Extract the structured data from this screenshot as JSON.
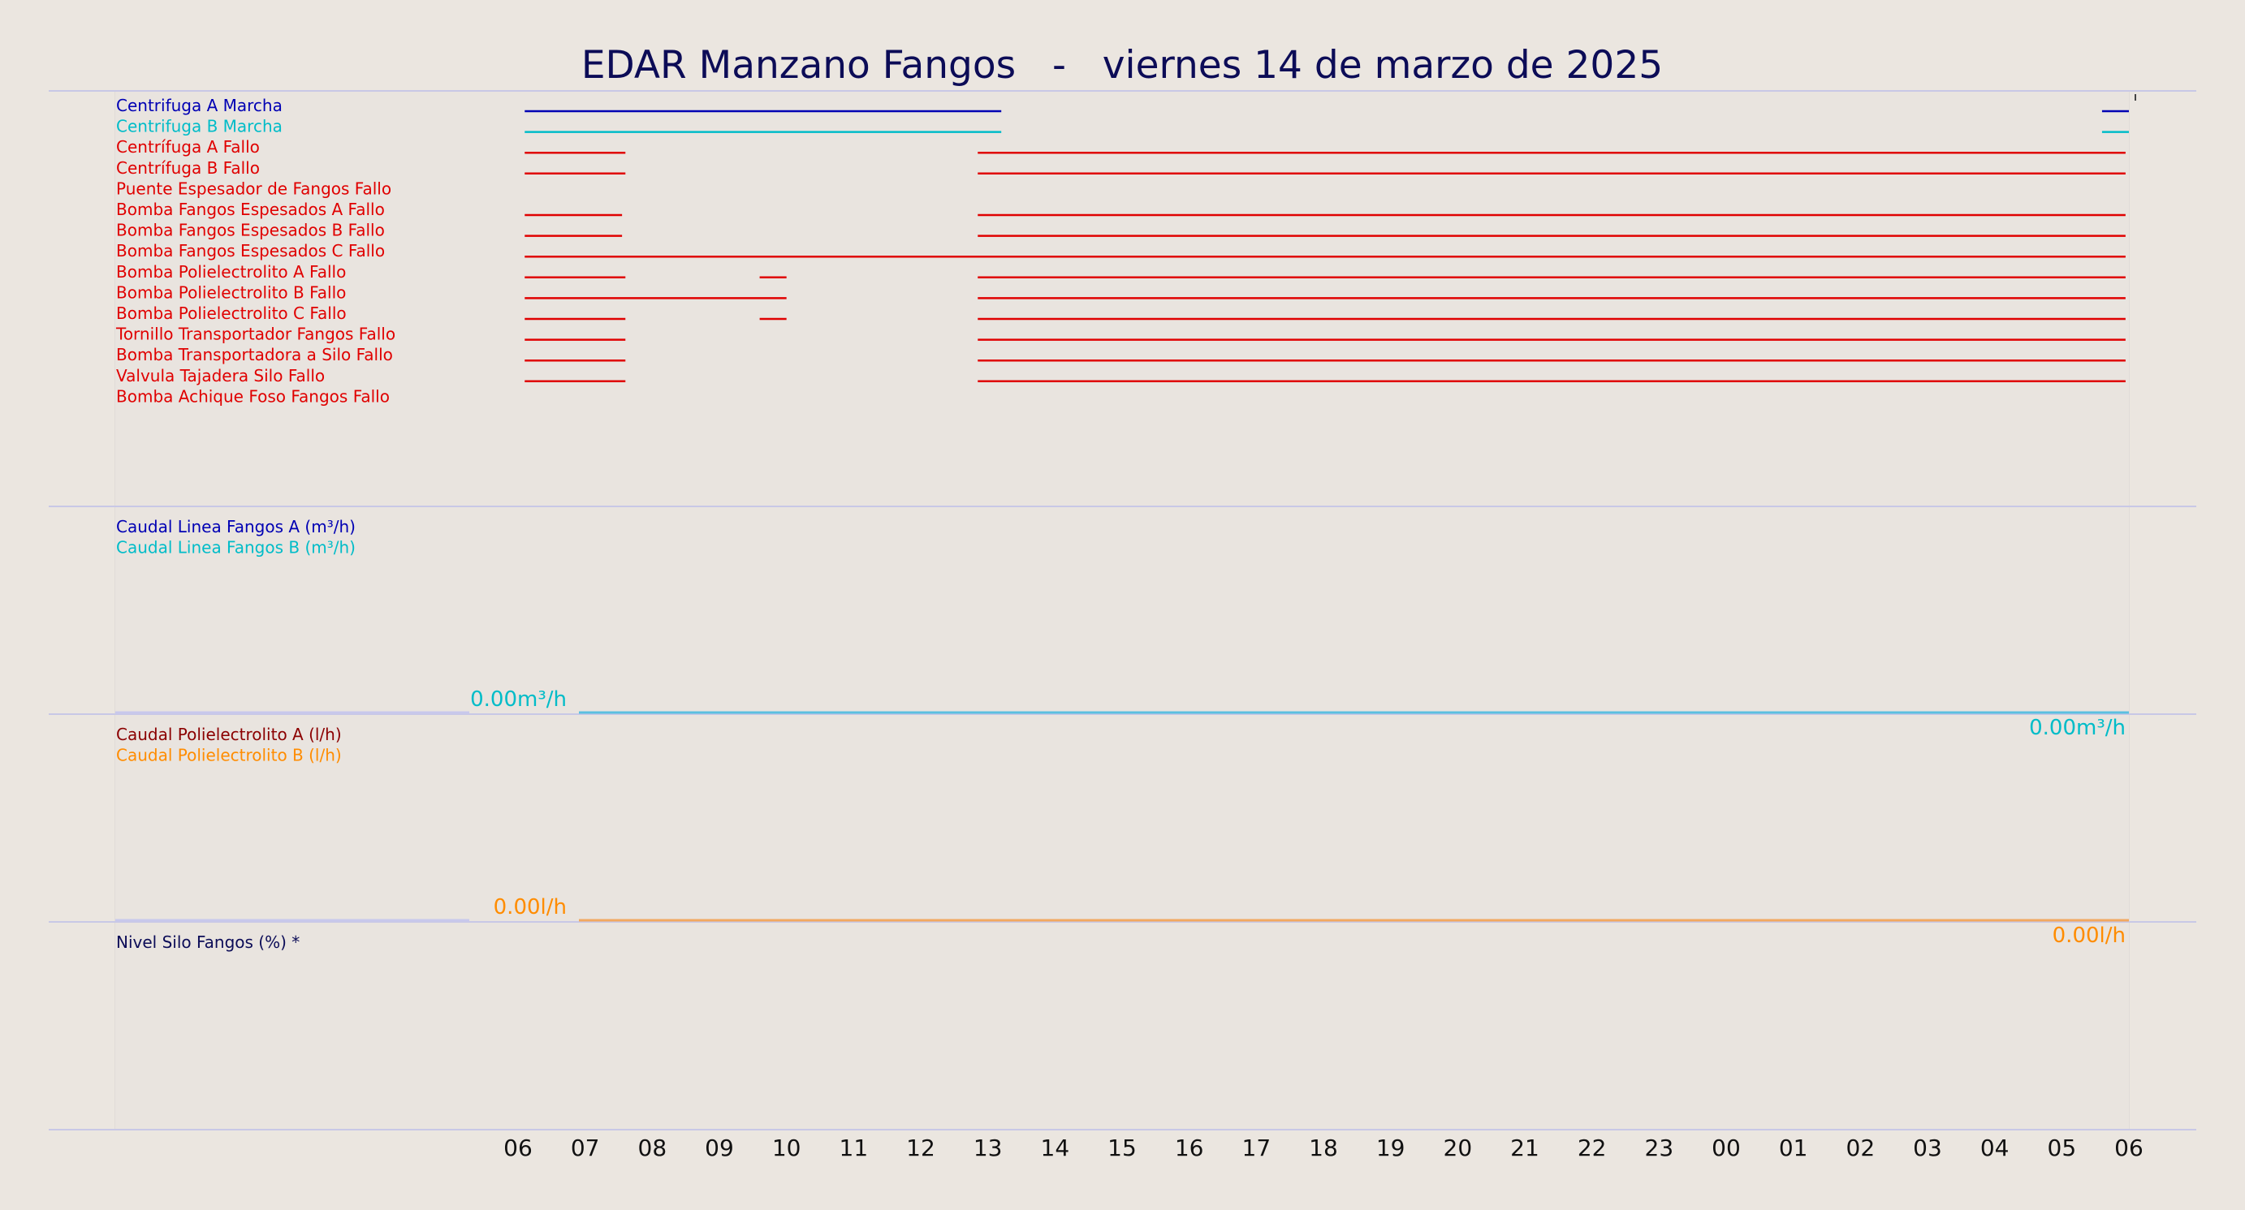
{
  "chart_data": {
    "type": "line",
    "title": "EDAR Manzano Fangos   -   viernes 14 de marzo de 2025",
    "x_range_hours": [
      6,
      30
    ],
    "x_ticks": [
      "06",
      "07",
      "08",
      "09",
      "10",
      "11",
      "12",
      "13",
      "14",
      "15",
      "16",
      "17",
      "18",
      "19",
      "20",
      "21",
      "22",
      "23",
      "00",
      "01",
      "02",
      "03",
      "04",
      "05",
      "06"
    ],
    "grid": true,
    "colors": {
      "background": "#ebe6e0",
      "title": "#0c0c57",
      "fault": "#e00000",
      "run_a": "#0000b4",
      "run_b": "#00bcc8",
      "flow_a": "#0000b4",
      "flow_b": "#00bcc8",
      "poly_a": "#8b0000",
      "poly_b": "#ff8c00",
      "silo": "#0c0c57"
    },
    "panels": [
      {
        "name": "estado",
        "signals": [
          {
            "label": "Centrifuga A Marcha",
            "color": "#0000b4",
            "on": [
              [
                6.1,
                13.2
              ],
              [
                29.6,
                30.0
              ]
            ]
          },
          {
            "label": "Centrifuga B Marcha",
            "color": "#00bcc8",
            "on": [
              [
                6.1,
                13.2
              ],
              [
                29.6,
                30.0
              ]
            ]
          },
          {
            "label": "Centrífuga A Fallo",
            "color": "#e00000",
            "on": [
              [
                6.1,
                7.6
              ],
              [
                12.85,
                29.95
              ]
            ]
          },
          {
            "label": "Centrífuga B Fallo",
            "color": "#e00000",
            "on": [
              [
                6.1,
                7.6
              ],
              [
                12.85,
                29.95
              ]
            ]
          },
          {
            "label": "Puente Espesador de Fangos Fallo",
            "color": "#e00000",
            "on": []
          },
          {
            "label": "Bomba Fangos Espesados A Fallo",
            "color": "#e00000",
            "on": [
              [
                6.1,
                7.55
              ],
              [
                12.85,
                29.95
              ]
            ]
          },
          {
            "label": "Bomba Fangos Espesados B Fallo",
            "color": "#e00000",
            "on": [
              [
                6.1,
                7.55
              ],
              [
                12.85,
                29.95
              ]
            ]
          },
          {
            "label": "Bomba Fangos Espesados C Fallo",
            "color": "#e00000",
            "on": [
              [
                6.1,
                29.95
              ]
            ]
          },
          {
            "label": "Bomba Polielectrolito A Fallo",
            "color": "#e00000",
            "on": [
              [
                6.1,
                7.6
              ],
              [
                9.6,
                10.0
              ],
              [
                12.85,
                29.95
              ]
            ]
          },
          {
            "label": "Bomba Polielectrolito B Fallo",
            "color": "#e00000",
            "on": [
              [
                6.1,
                10.0
              ],
              [
                12.85,
                29.95
              ]
            ]
          },
          {
            "label": "Bomba Polielectrolito C Fallo",
            "color": "#e00000",
            "on": [
              [
                6.1,
                7.6
              ],
              [
                9.6,
                10.0
              ],
              [
                12.85,
                29.95
              ]
            ]
          },
          {
            "label": "Tornillo Transportador Fangos Fallo",
            "color": "#e00000",
            "on": [
              [
                6.1,
                7.6
              ],
              [
                12.85,
                29.95
              ]
            ]
          },
          {
            "label": "Bomba Transportadora a Silo Fallo",
            "color": "#e00000",
            "on": [
              [
                6.1,
                7.6
              ],
              [
                12.85,
                29.95
              ]
            ]
          },
          {
            "label": "Valvula Tajadera Silo Fallo",
            "color": "#e00000",
            "on": [
              [
                6.1,
                7.6
              ],
              [
                12.85,
                29.95
              ]
            ]
          },
          {
            "label": "Bomba Achique Foso Fangos Fallo",
            "color": "#e00000",
            "on": []
          }
        ]
      },
      {
        "name": "caudal-lineas",
        "series": [
          {
            "label": "Caudal Linea Fangos A (m³/h)",
            "color": "#0000b4",
            "values": [
              0
            ]
          },
          {
            "label": "Caudal Linea Fangos B (m³/h)",
            "color": "#00bcc8",
            "values": [
              0
            ]
          }
        ],
        "line_color": "#5bbfe0",
        "start_label": "0.00m³/h",
        "end_label": "0.00m³/h",
        "label_color": "#00bcc8"
      },
      {
        "name": "caudal-poli",
        "series": [
          {
            "label": "Caudal Polielectrolito A (l/h)",
            "color": "#8b0000",
            "values": [
              0
            ]
          },
          {
            "label": "Caudal Polielectrolito B (l/h)",
            "color": "#ff8c00",
            "values": [
              0
            ]
          }
        ],
        "line_color": "#f2a860",
        "start_label": "0.00l/h",
        "end_label": "0.00l/h",
        "label_color": "#ff8c00"
      },
      {
        "name": "nivel-silo",
        "series": [
          {
            "label": "Nivel Silo Fangos (%) *",
            "color": "#0c0c57",
            "values": []
          }
        ]
      }
    ]
  }
}
